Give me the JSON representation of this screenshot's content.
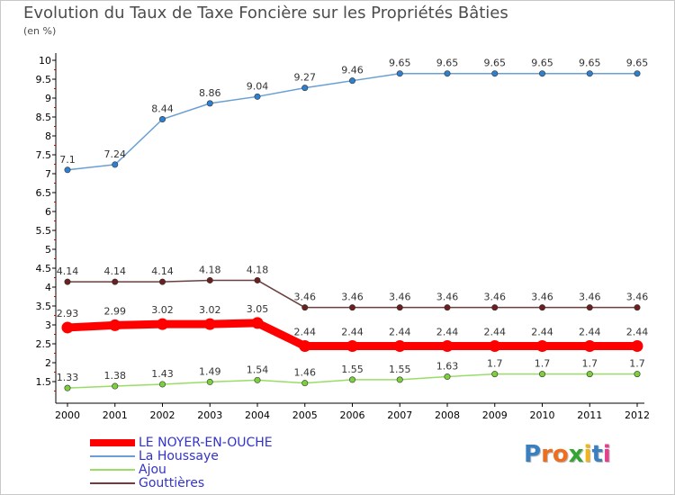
{
  "title": "Evolution du Taux de Taxe Foncière sur les Propriétés Bâties",
  "subtitle": "(en %)",
  "logo": {
    "letters": [
      "P",
      "r",
      "o",
      "x",
      "i",
      "t",
      "i"
    ],
    "colors": [
      "#3a7fc0",
      "#ee6d1f",
      "#ee6d1f",
      "#33a532",
      "#f2b417",
      "#3a7fc0",
      "#e63d8c"
    ]
  },
  "chart_data": {
    "type": "line",
    "title": "Evolution du Taux de Taxe Foncière sur les Propriétés Bâties",
    "ylabel": "(en %)",
    "xlabel": "",
    "x": [
      "2000",
      "2001",
      "2002",
      "2003",
      "2004",
      "2005",
      "2006",
      "2007",
      "2008",
      "2009",
      "2010",
      "2011",
      "2012"
    ],
    "ylim": [
      1,
      10
    ],
    "yticks": [
      1.5,
      2,
      2.5,
      3,
      3.5,
      4,
      4.5,
      5,
      5.5,
      6,
      6.5,
      7,
      7.5,
      8,
      8.5,
      9,
      9.5,
      10
    ],
    "grid": false,
    "legend_position": "bottom-left",
    "series": [
      {
        "name": "LE NOYER-EN-OUCHE",
        "color": "#ff0000",
        "thick": true,
        "values": [
          2.93,
          2.99,
          3.02,
          3.02,
          3.05,
          2.44,
          2.44,
          2.44,
          2.44,
          2.44,
          2.44,
          2.44,
          2.44
        ],
        "labels": [
          "2.93",
          "2.99",
          "3.02",
          "3.02",
          "3.05",
          "2.44",
          "2.44",
          "2.44",
          "2.44",
          "2.44",
          "2.44",
          "2.44",
          "2.44"
        ]
      },
      {
        "name": "La Houssaye",
        "color": "#6a9fd4",
        "marker": "#2f7fcf",
        "values": [
          7.1,
          7.24,
          8.44,
          8.86,
          9.04,
          9.27,
          9.46,
          9.65,
          9.65,
          9.65,
          9.65,
          9.65,
          9.65
        ],
        "labels": [
          "7.1",
          "7.24",
          "8.44",
          "8.86",
          "9.04",
          "9.27",
          "9.46",
          "9.65",
          "9.65",
          "9.65",
          "9.65",
          "9.65",
          "9.65"
        ]
      },
      {
        "name": "Ajou",
        "color": "#99dd66",
        "marker": "#7bd03c",
        "values": [
          1.33,
          1.38,
          1.43,
          1.49,
          1.54,
          1.46,
          1.55,
          1.55,
          1.63,
          1.7,
          1.7,
          1.7,
          1.7
        ],
        "labels": [
          "1.33",
          "1.38",
          "1.43",
          "1.49",
          "1.54",
          "1.46",
          "1.55",
          "1.55",
          "1.63",
          "1.7",
          "1.7",
          "1.7",
          "1.7"
        ]
      },
      {
        "name": "Gouttières",
        "color": "#6b3f3f",
        "marker": "#6b1f1f",
        "values": [
          4.14,
          4.14,
          4.14,
          4.18,
          4.18,
          3.46,
          3.46,
          3.46,
          3.46,
          3.46,
          3.46,
          3.46,
          3.46
        ],
        "labels": [
          "4.14",
          "4.14",
          "4.14",
          "4.18",
          "4.18",
          "3.46",
          "3.46",
          "3.46",
          "3.46",
          "3.46",
          "3.46",
          "3.46",
          "3.46"
        ]
      }
    ]
  }
}
